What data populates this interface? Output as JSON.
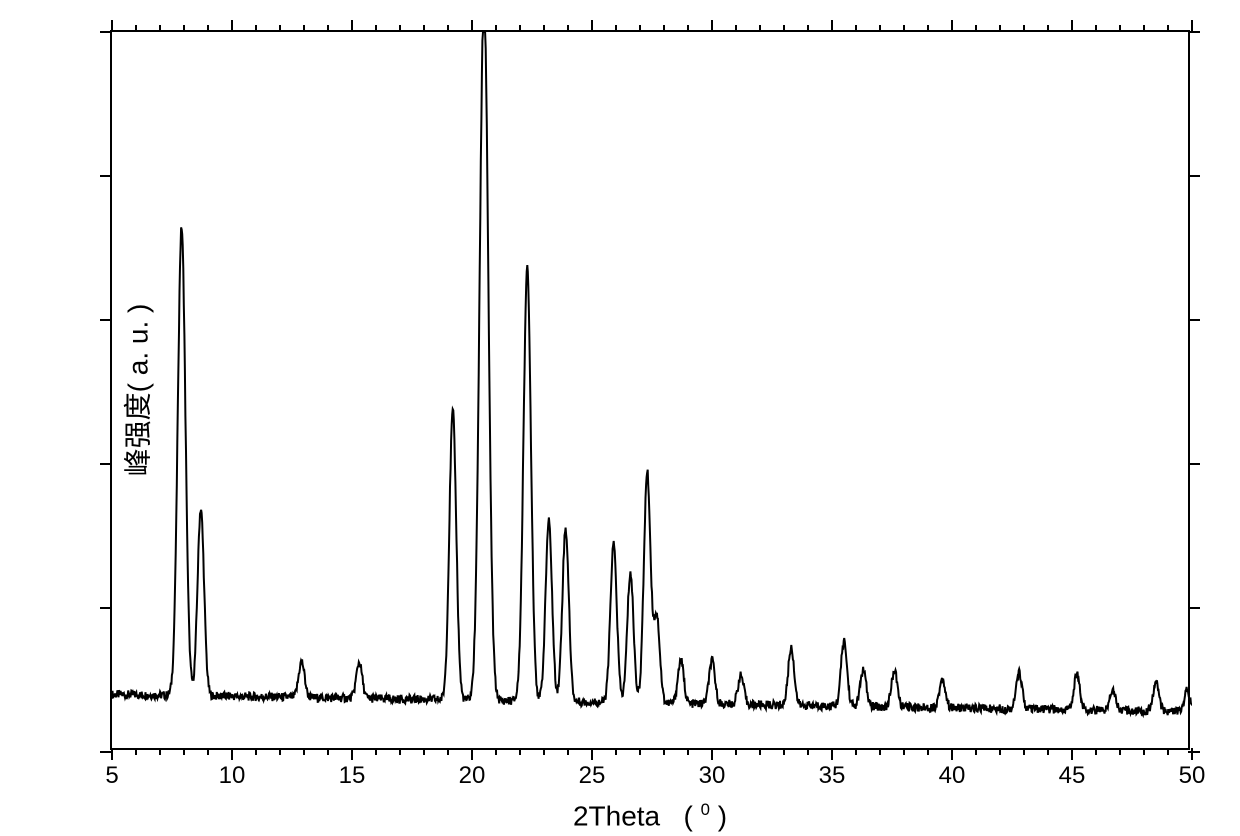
{
  "chart": {
    "type": "line",
    "background_color": "#ffffff",
    "line_color": "#000000",
    "line_width": 2,
    "border_color": "#000000",
    "border_width": 2,
    "x_axis": {
      "title": "2Theta",
      "title_unit_prefix": "(",
      "title_unit_suffix": ")",
      "title_sup": "0",
      "min": 5,
      "max": 50,
      "major_ticks": [
        5,
        10,
        15,
        20,
        25,
        30,
        35,
        40,
        45,
        50
      ],
      "minor_tick_step": 1,
      "label_fontsize": 24,
      "title_fontsize": 28
    },
    "y_axis": {
      "title_main": "峰强度",
      "title_unit": "( a. u. )",
      "title_fontsize": 28,
      "show_labels": false,
      "tick_count": 6
    },
    "peaks": [
      {
        "x": 7.9,
        "h": 0.65
      },
      {
        "x": 8.7,
        "h": 0.26
      },
      {
        "x": 12.9,
        "h": 0.05
      },
      {
        "x": 15.3,
        "h": 0.05
      },
      {
        "x": 19.2,
        "h": 0.4
      },
      {
        "x": 20.5,
        "h": 0.98
      },
      {
        "x": 22.3,
        "h": 0.6
      },
      {
        "x": 23.2,
        "h": 0.25
      },
      {
        "x": 23.9,
        "h": 0.24
      },
      {
        "x": 25.9,
        "h": 0.22
      },
      {
        "x": 26.6,
        "h": 0.18
      },
      {
        "x": 27.3,
        "h": 0.32
      },
      {
        "x": 27.7,
        "h": 0.12
      },
      {
        "x": 28.7,
        "h": 0.06
      },
      {
        "x": 30.0,
        "h": 0.06
      },
      {
        "x": 31.2,
        "h": 0.04
      },
      {
        "x": 33.3,
        "h": 0.08
      },
      {
        "x": 35.5,
        "h": 0.09
      },
      {
        "x": 36.3,
        "h": 0.05
      },
      {
        "x": 37.6,
        "h": 0.05
      },
      {
        "x": 39.6,
        "h": 0.04
      },
      {
        "x": 42.8,
        "h": 0.05
      },
      {
        "x": 45.2,
        "h": 0.05
      },
      {
        "x": 46.7,
        "h": 0.03
      },
      {
        "x": 48.5,
        "h": 0.04
      },
      {
        "x": 49.8,
        "h": 0.03
      }
    ],
    "baseline": 0.08,
    "noise_amp": 0.012
  }
}
